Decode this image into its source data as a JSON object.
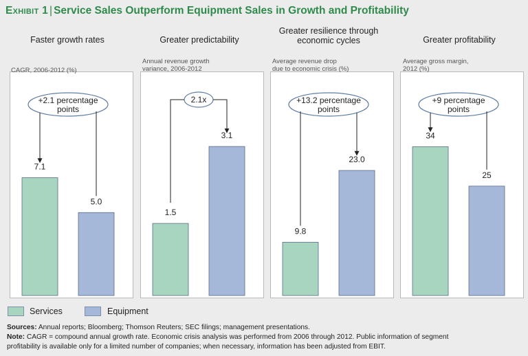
{
  "title": {
    "exhibit": "Exhibit 1",
    "separator": "|",
    "text": "Service Sales Outperform Equipment Sales in Growth and Profitability"
  },
  "legend": {
    "services": "Services",
    "equipment": "Equipment"
  },
  "colors": {
    "services": "#a7d5c0",
    "equipment": "#a6b8d9",
    "bar_stroke": "#5b6b86",
    "title_green": "#2f8a4c"
  },
  "footnotes": {
    "sources_label": "Sources:",
    "sources_text": "Annual reports; Bloomberg; Thomson Reuters; SEC filings; management presentations.",
    "note_label": "Note:",
    "note_line1": "CAGR = compound annual growth rate. Economic crisis analysis was performed from 2006 through 2012. Public information of segment",
    "note_line2": "profitability is available only for a limited number of companies; when necessary, information has been adjusted from EBIT."
  },
  "chart_data": [
    {
      "type": "bar",
      "title": "Faster growth rates",
      "ylabel": "CAGR, 2006-2012 (%)",
      "categories": [
        "Services",
        "Equipment"
      ],
      "values": [
        7.1,
        5.0
      ],
      "value_labels": [
        "7.1",
        "5.0"
      ],
      "ylim": [
        0,
        13.5
      ],
      "annotation": "+2.1 percentage points",
      "annotation_lines": [
        "+2.1 percentage",
        "points"
      ]
    },
    {
      "type": "bar",
      "title": "Greater predictability",
      "ylabel": "Annual revenue growth variance, 2006-2012",
      "ylabel_lines": [
        "Annual revenue growth",
        "variance, 2006-2012"
      ],
      "categories": [
        "Services",
        "Equipment"
      ],
      "values": [
        1.5,
        3.1
      ],
      "value_labels": [
        "1.5",
        "3.1"
      ],
      "ylim": [
        0,
        4.66
      ],
      "annotation": "2.1x",
      "annotation_lines": [
        "2.1x"
      ]
    },
    {
      "type": "bar",
      "title": "Greater resilience through economic cycles",
      "title_lines": [
        "Greater resilience through",
        "economic cycles"
      ],
      "ylabel": "Average revenue drop due to economic crisis (%)",
      "ylabel_lines": [
        "Average revenue drop",
        "due to economic crisis (%)"
      ],
      "categories": [
        "Services",
        "Equipment"
      ],
      "values": [
        9.8,
        23.0
      ],
      "value_labels": [
        "9.8",
        "23.0"
      ],
      "ylim": [
        0,
        41.2
      ],
      "annotation": "+13.2 percentage points",
      "annotation_lines": [
        "+13.2 percentage",
        "points"
      ]
    },
    {
      "type": "bar",
      "title": "Greater profitability",
      "ylabel": "Average gross margin, 2012 (%)",
      "ylabel_lines": [
        "Average gross margin,",
        "2012 (%)"
      ],
      "categories": [
        "Services",
        "Equipment"
      ],
      "values": [
        34,
        25
      ],
      "value_labels": [
        "34",
        "25"
      ],
      "ylim": [
        0,
        51.2
      ],
      "annotation": "+9 percentage points",
      "annotation_lines": [
        "+9 percentage",
        "points"
      ]
    }
  ]
}
